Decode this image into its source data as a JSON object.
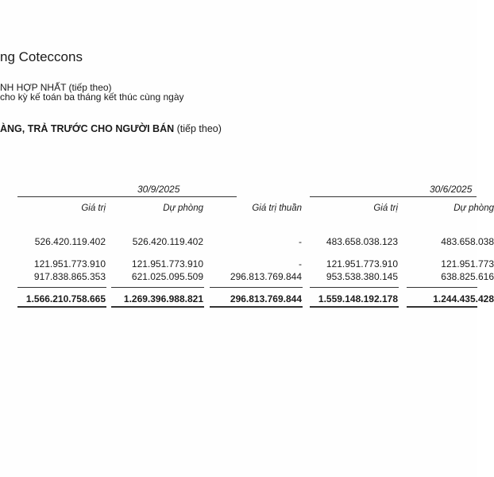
{
  "company_title": "ng Coteccons",
  "report_title": "NH HỢP NHẤT (tiếp theo)",
  "report_subtitle": "cho kỳ kế toán ba tháng kết thúc cùng ngày",
  "section": {
    "bold": "ÀNG, TRẢ TRƯỚC CHO NGƯỜI BÁN",
    "note": "(tiếp theo)"
  },
  "periods": [
    "30/9/2025",
    "30/6/2025"
  ],
  "columns": [
    "Giá trị",
    "Dự phòng",
    "Giá trị thuần",
    "Giá trị",
    "Dự phòng"
  ],
  "rows": [
    [
      "526.420.119.402",
      "526.420.119.402",
      "-",
      "483.658.038.123",
      "483.658.038"
    ],
    [
      "121.951.773.910",
      "121.951.773.910",
      "-",
      "121.951.773.910",
      "121.951.773"
    ],
    [
      "917.838.865.353",
      "621.025.095.509",
      "296.813.769.844",
      "953.538.380.145",
      "638.825.616"
    ]
  ],
  "total": [
    "1.566.210.758.665",
    "1.269.396.988.821",
    "296.813.769.844",
    "1.559.148.192.178",
    "1.244.435.428"
  ]
}
